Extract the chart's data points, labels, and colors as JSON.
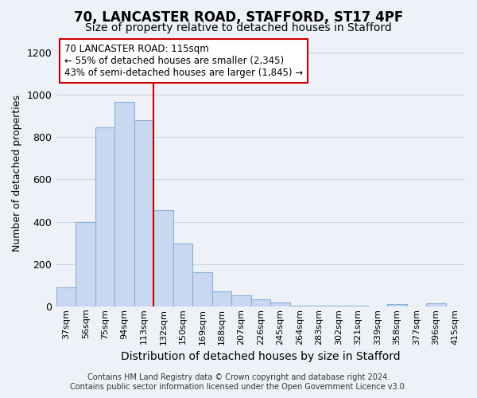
{
  "title1": "70, LANCASTER ROAD, STAFFORD, ST17 4PF",
  "title2": "Size of property relative to detached houses in Stafford",
  "xlabel": "Distribution of detached houses by size in Stafford",
  "ylabel": "Number of detached properties",
  "categories": [
    "37sqm",
    "56sqm",
    "75sqm",
    "94sqm",
    "113sqm",
    "132sqm",
    "150sqm",
    "169sqm",
    "188sqm",
    "207sqm",
    "226sqm",
    "245sqm",
    "264sqm",
    "283sqm",
    "302sqm",
    "321sqm",
    "339sqm",
    "358sqm",
    "377sqm",
    "396sqm",
    "415sqm"
  ],
  "values": [
    90,
    400,
    845,
    965,
    880,
    455,
    295,
    160,
    70,
    52,
    32,
    18,
    5,
    5,
    5,
    5,
    0,
    10,
    0,
    15,
    0
  ],
  "bar_color": "#c8d8f0",
  "bar_edge_color": "#8ab0d8",
  "vline_index": 4,
  "annotation_line1": "70 LANCASTER ROAD: 115sqm",
  "annotation_line2": "← 55% of detached houses are smaller (2,345)",
  "annotation_line3": "43% of semi-detached houses are larger (1,845) →",
  "annotation_box_color": "#ffffff",
  "annotation_border_color": "#cc0000",
  "vline_color": "#cc0000",
  "footer1": "Contains HM Land Registry data © Crown copyright and database right 2024.",
  "footer2": "Contains public sector information licensed under the Open Government Licence v3.0.",
  "grid_color": "#c8d4e8",
  "background_color": "#eef2f8",
  "ylim": [
    0,
    1260
  ],
  "title_fontsize": 12,
  "subtitle_fontsize": 10,
  "tick_fontsize": 8,
  "ylabel_fontsize": 9,
  "xlabel_fontsize": 10,
  "footer_fontsize": 7
}
